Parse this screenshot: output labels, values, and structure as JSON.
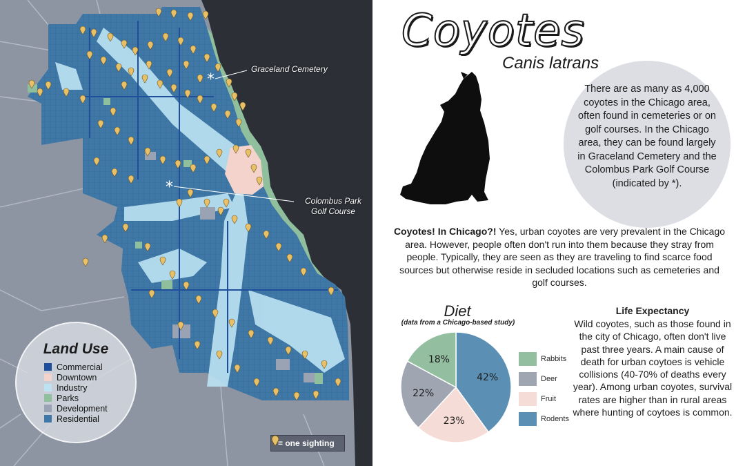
{
  "title": "Coyotes",
  "subtitle": "Canis latrans",
  "fact": "There are as many as 4,000 coyotes in the Chicago area, often found in cemeteries or on golf courses. In the Chicago area, they can be found largely in Graceland Cemetery and the Colombus Park Golf Course (indicated by *).",
  "intro": {
    "lead": "Coyotes! In Chicago?!",
    "body": " Yes, urban coyotes are very prevalent in the Chicago area. However, people often don't run into them because they stray from people. Typically, they are seen as they are traveling to find scarce food sources but otherwise reside in secluded locations such as cemeteries and golf courses."
  },
  "map": {
    "callouts": {
      "graceland": "Graceland Cemetery",
      "columbus_line1": "Colombus Park",
      "columbus_line2": "Golf Course"
    },
    "legend": {
      "title": "Land Use",
      "items": [
        {
          "label": "Commercial",
          "color": "#1f4e9a"
        },
        {
          "label": "Downtown",
          "color": "#f3d3cb"
        },
        {
          "label": "Industry",
          "color": "#bde3f3"
        },
        {
          "label": "Parks",
          "color": "#8fbf9c"
        },
        {
          "label": "Development",
          "color": "#9aa3b3"
        },
        {
          "label": "Residential",
          "color": "#3f78a6"
        }
      ]
    },
    "sighting_key": "= one sighting",
    "marker_color": "#e8c068"
  },
  "diet": {
    "title": "Diet",
    "note": "(data from a Chicago-based study)"
  },
  "chart_data": {
    "type": "pie",
    "title": "Diet",
    "categories": [
      "Rabbits",
      "Deer",
      "Fruit",
      "Rodents"
    ],
    "values": [
      18,
      22,
      23,
      42
    ],
    "labels": [
      "18%",
      "22%",
      "23%",
      "42%"
    ],
    "colors": [
      "#93bea0",
      "#9fa6b2",
      "#f6dcd6",
      "#5b90b4"
    ],
    "legend": "right"
  },
  "life": {
    "title": "Life Expectancy",
    "text": "Wild coyotes, such as those found in the city of Chicago, often don't live past three years. A main cause of death for urban coytoes is vehicle collisions (40-70% of deaths every year). Among urban coyotes, survival rates are higher than in rural areas where hunting of coytoes is common."
  }
}
